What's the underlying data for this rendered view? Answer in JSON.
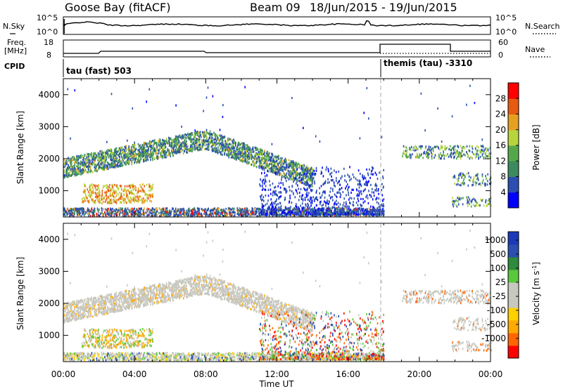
{
  "header": {
    "title": "Goose Bay (fitACF)",
    "beam": "Beam 09",
    "date_range": "18/Jun/2015 - 19/Jun/2015"
  },
  "panels": {
    "nsky": {
      "label": "N.Sky",
      "tick_top": "10^5",
      "tick_bottom": "10^0",
      "right_label": "N.Search",
      "right_tick_top": "10^5",
      "right_tick_bottom": "10^0"
    },
    "freq": {
      "label_line1": "Freq.",
      "label_line2": "[MHz]",
      "tick_top": "18",
      "tick_bottom": "8",
      "right_label": "Nave",
      "right_tick_top": "60",
      "right_tick_bottom": "0"
    },
    "cpid": {
      "label": "CPID",
      "mode1": "tau (fast) 503",
      "mode2": "themis (tau) -3310"
    }
  },
  "colors": {
    "power_scale": [
      "#0000ff",
      "#2a4fb0",
      "#3d8a5f",
      "#55a84a",
      "#b8d43c",
      "#e6a020",
      "#e85a10",
      "#ff0000"
    ],
    "velocity_scale": [
      "#ff0000",
      "#ff6600",
      "#ffaa00",
      "#ffd000",
      "#c8c8c0",
      "#c8c8c0",
      "#5ac83c",
      "#2e8a3c",
      "#2a4fb0",
      "#1a3ab8"
    ],
    "ground_scatter": "#c8c8c0"
  },
  "chart_data": [
    {
      "type": "heatmap",
      "name": "power",
      "ylabel": "Slant Range [km]",
      "xlabel": "Time UT",
      "xlim": [
        "00:00",
        "24:00"
      ],
      "x_ticks": [
        "00:00",
        "04:00",
        "08:00",
        "12:00",
        "16:00",
        "20:00",
        "00:00"
      ],
      "ylim": [
        180,
        4500
      ],
      "y_ticks": [
        1000,
        2000,
        3000,
        4000
      ],
      "colorbar": {
        "label": "Power [dB]",
        "range": [
          0,
          32
        ],
        "ticks": [
          4,
          8,
          12,
          16,
          20,
          24,
          28
        ]
      },
      "features": [
        {
          "time": [
            0,
            8
          ],
          "range": [
            1600,
            2800
          ],
          "note": "rising backscatter band"
        },
        {
          "time": [
            8,
            14
          ],
          "range": [
            1400,
            2600
          ],
          "note": "descending backscatter band"
        },
        {
          "time": [
            1,
            5
          ],
          "range": [
            600,
            1200
          ],
          "note": "near-range patches"
        },
        {
          "time": [
            0,
            18
          ],
          "range": [
            180,
            400
          ],
          "note": "near-range echoes"
        },
        {
          "time": [
            19,
            24
          ],
          "range": [
            500,
            2400
          ],
          "note": "late-day patches"
        }
      ],
      "mode_change_time": 18.0
    },
    {
      "type": "heatmap",
      "name": "velocity",
      "ylabel": "Slant Range [km]",
      "xlabel": "Time UT",
      "xlim": [
        "00:00",
        "24:00"
      ],
      "x_ticks": [
        "00:00",
        "04:00",
        "08:00",
        "12:00",
        "16:00",
        "20:00",
        "00:00"
      ],
      "ylim": [
        180,
        4500
      ],
      "y_ticks": [
        1000,
        2000,
        3000,
        4000
      ],
      "colorbar": {
        "label": "Velocity [m s^-1]",
        "ticks": [
          "1000",
          "500",
          "100",
          "25",
          "-25",
          "-100",
          "-500",
          "-1000"
        ]
      },
      "mode_change_time": 18.0
    }
  ]
}
